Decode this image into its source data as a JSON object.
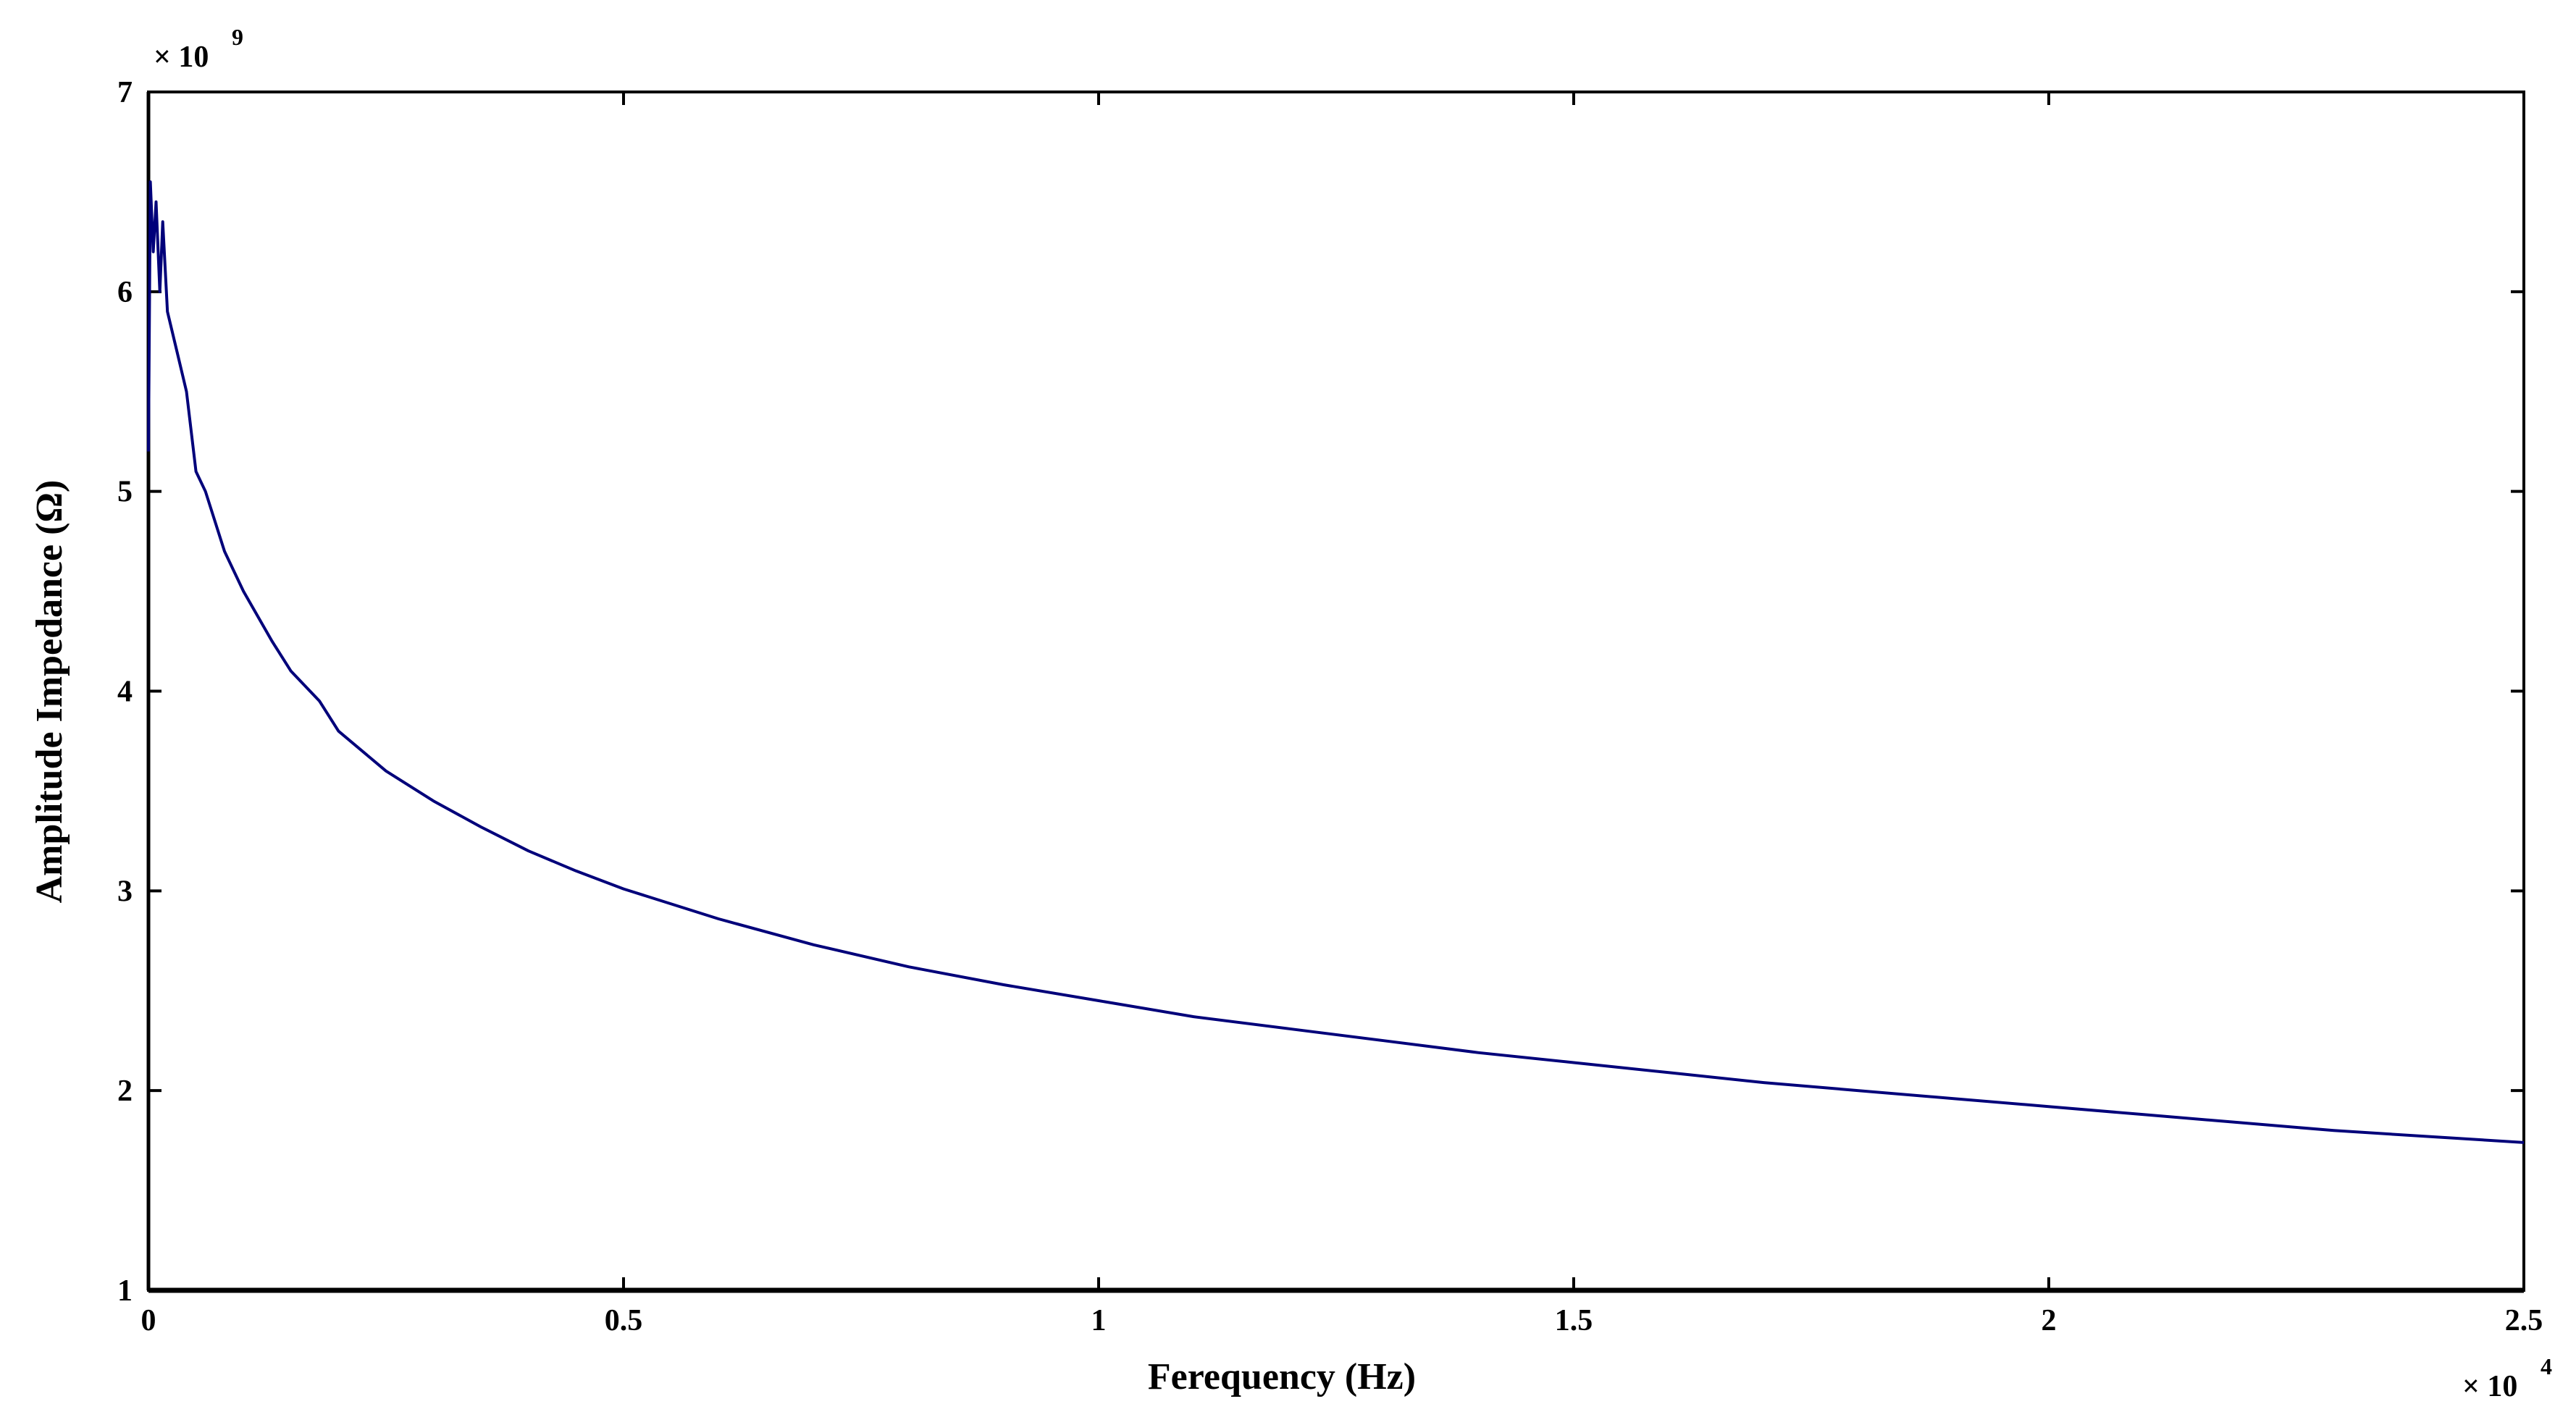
{
  "chart_data": {
    "type": "line",
    "xlabel": "Ferequency (Hz)",
    "ylabel": "Amplitude Impedance (Ω)",
    "x_multiplier": {
      "base": "× 10",
      "exponent": "4"
    },
    "y_multiplier": {
      "base": "× 10",
      "exponent": "9"
    },
    "xlim": [
      0,
      2.5
    ],
    "ylim": [
      1,
      7
    ],
    "x_ticks": [
      "0",
      "0.5",
      "1",
      "1.5",
      "2",
      "2.5"
    ],
    "y_ticks": [
      "1",
      "2",
      "3",
      "4",
      "5",
      "6",
      "7"
    ],
    "grid": false,
    "line_color": "#00007a",
    "series": [
      {
        "points": [
          [
            0.0,
            5.2
          ],
          [
            0.002,
            6.55
          ],
          [
            0.005,
            6.2
          ],
          [
            0.008,
            6.45
          ],
          [
            0.012,
            6.0
          ],
          [
            0.015,
            6.35
          ],
          [
            0.02,
            5.9
          ],
          [
            0.03,
            5.7
          ],
          [
            0.04,
            5.5
          ],
          [
            0.05,
            5.1
          ],
          [
            0.06,
            5.0
          ],
          [
            0.08,
            4.7
          ],
          [
            0.1,
            4.5
          ],
          [
            0.13,
            4.25
          ],
          [
            0.15,
            4.1
          ],
          [
            0.18,
            3.95
          ],
          [
            0.2,
            3.8
          ],
          [
            0.25,
            3.6
          ],
          [
            0.3,
            3.45
          ],
          [
            0.35,
            3.32
          ],
          [
            0.4,
            3.2
          ],
          [
            0.45,
            3.1
          ],
          [
            0.5,
            3.01
          ],
          [
            0.6,
            2.86
          ],
          [
            0.7,
            2.73
          ],
          [
            0.8,
            2.62
          ],
          [
            0.9,
            2.53
          ],
          [
            1.0,
            2.45
          ],
          [
            1.1,
            2.37
          ],
          [
            1.2,
            2.31
          ],
          [
            1.3,
            2.25
          ],
          [
            1.4,
            2.19
          ],
          [
            1.5,
            2.14
          ],
          [
            1.6,
            2.09
          ],
          [
            1.7,
            2.04
          ],
          [
            1.8,
            2.0
          ],
          [
            1.9,
            1.96
          ],
          [
            2.0,
            1.92
          ],
          [
            2.1,
            1.88
          ],
          [
            2.2,
            1.84
          ],
          [
            2.3,
            1.8
          ],
          [
            2.4,
            1.77
          ],
          [
            2.5,
            1.74
          ]
        ]
      }
    ]
  }
}
